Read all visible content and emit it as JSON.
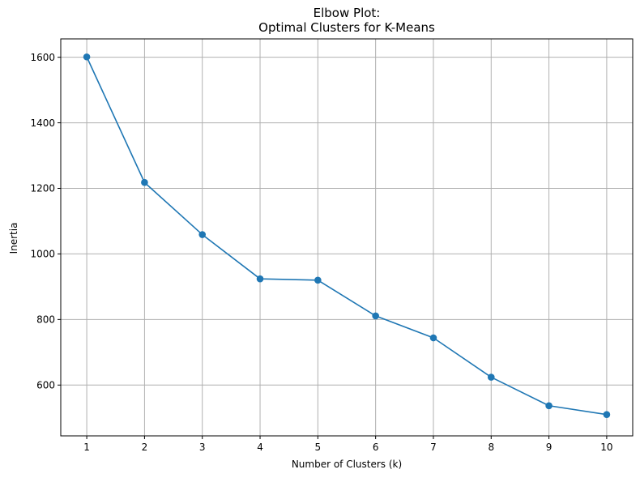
{
  "chart_data": {
    "type": "line",
    "title": "Elbow Plot:",
    "subtitle": "Optimal Clusters for K-Means",
    "xlabel": "Number of Clusters (k)",
    "ylabel": "Inertia",
    "x": [
      1,
      2,
      3,
      4,
      5,
      6,
      7,
      8,
      9,
      10
    ],
    "values": [
      1601,
      1218,
      1059,
      924,
      920,
      811,
      744,
      624,
      537,
      510
    ],
    "xlim": [
      0.55,
      10.45
    ],
    "ylim": [
      445,
      1656
    ],
    "xticks": [
      1,
      2,
      3,
      4,
      5,
      6,
      7,
      8,
      9,
      10
    ],
    "yticks": [
      600,
      800,
      1000,
      1200,
      1400,
      1600
    ],
    "grid": true,
    "marker": "circle",
    "line_color": "#1f77b4",
    "grid_color": "#b0b0b0"
  }
}
